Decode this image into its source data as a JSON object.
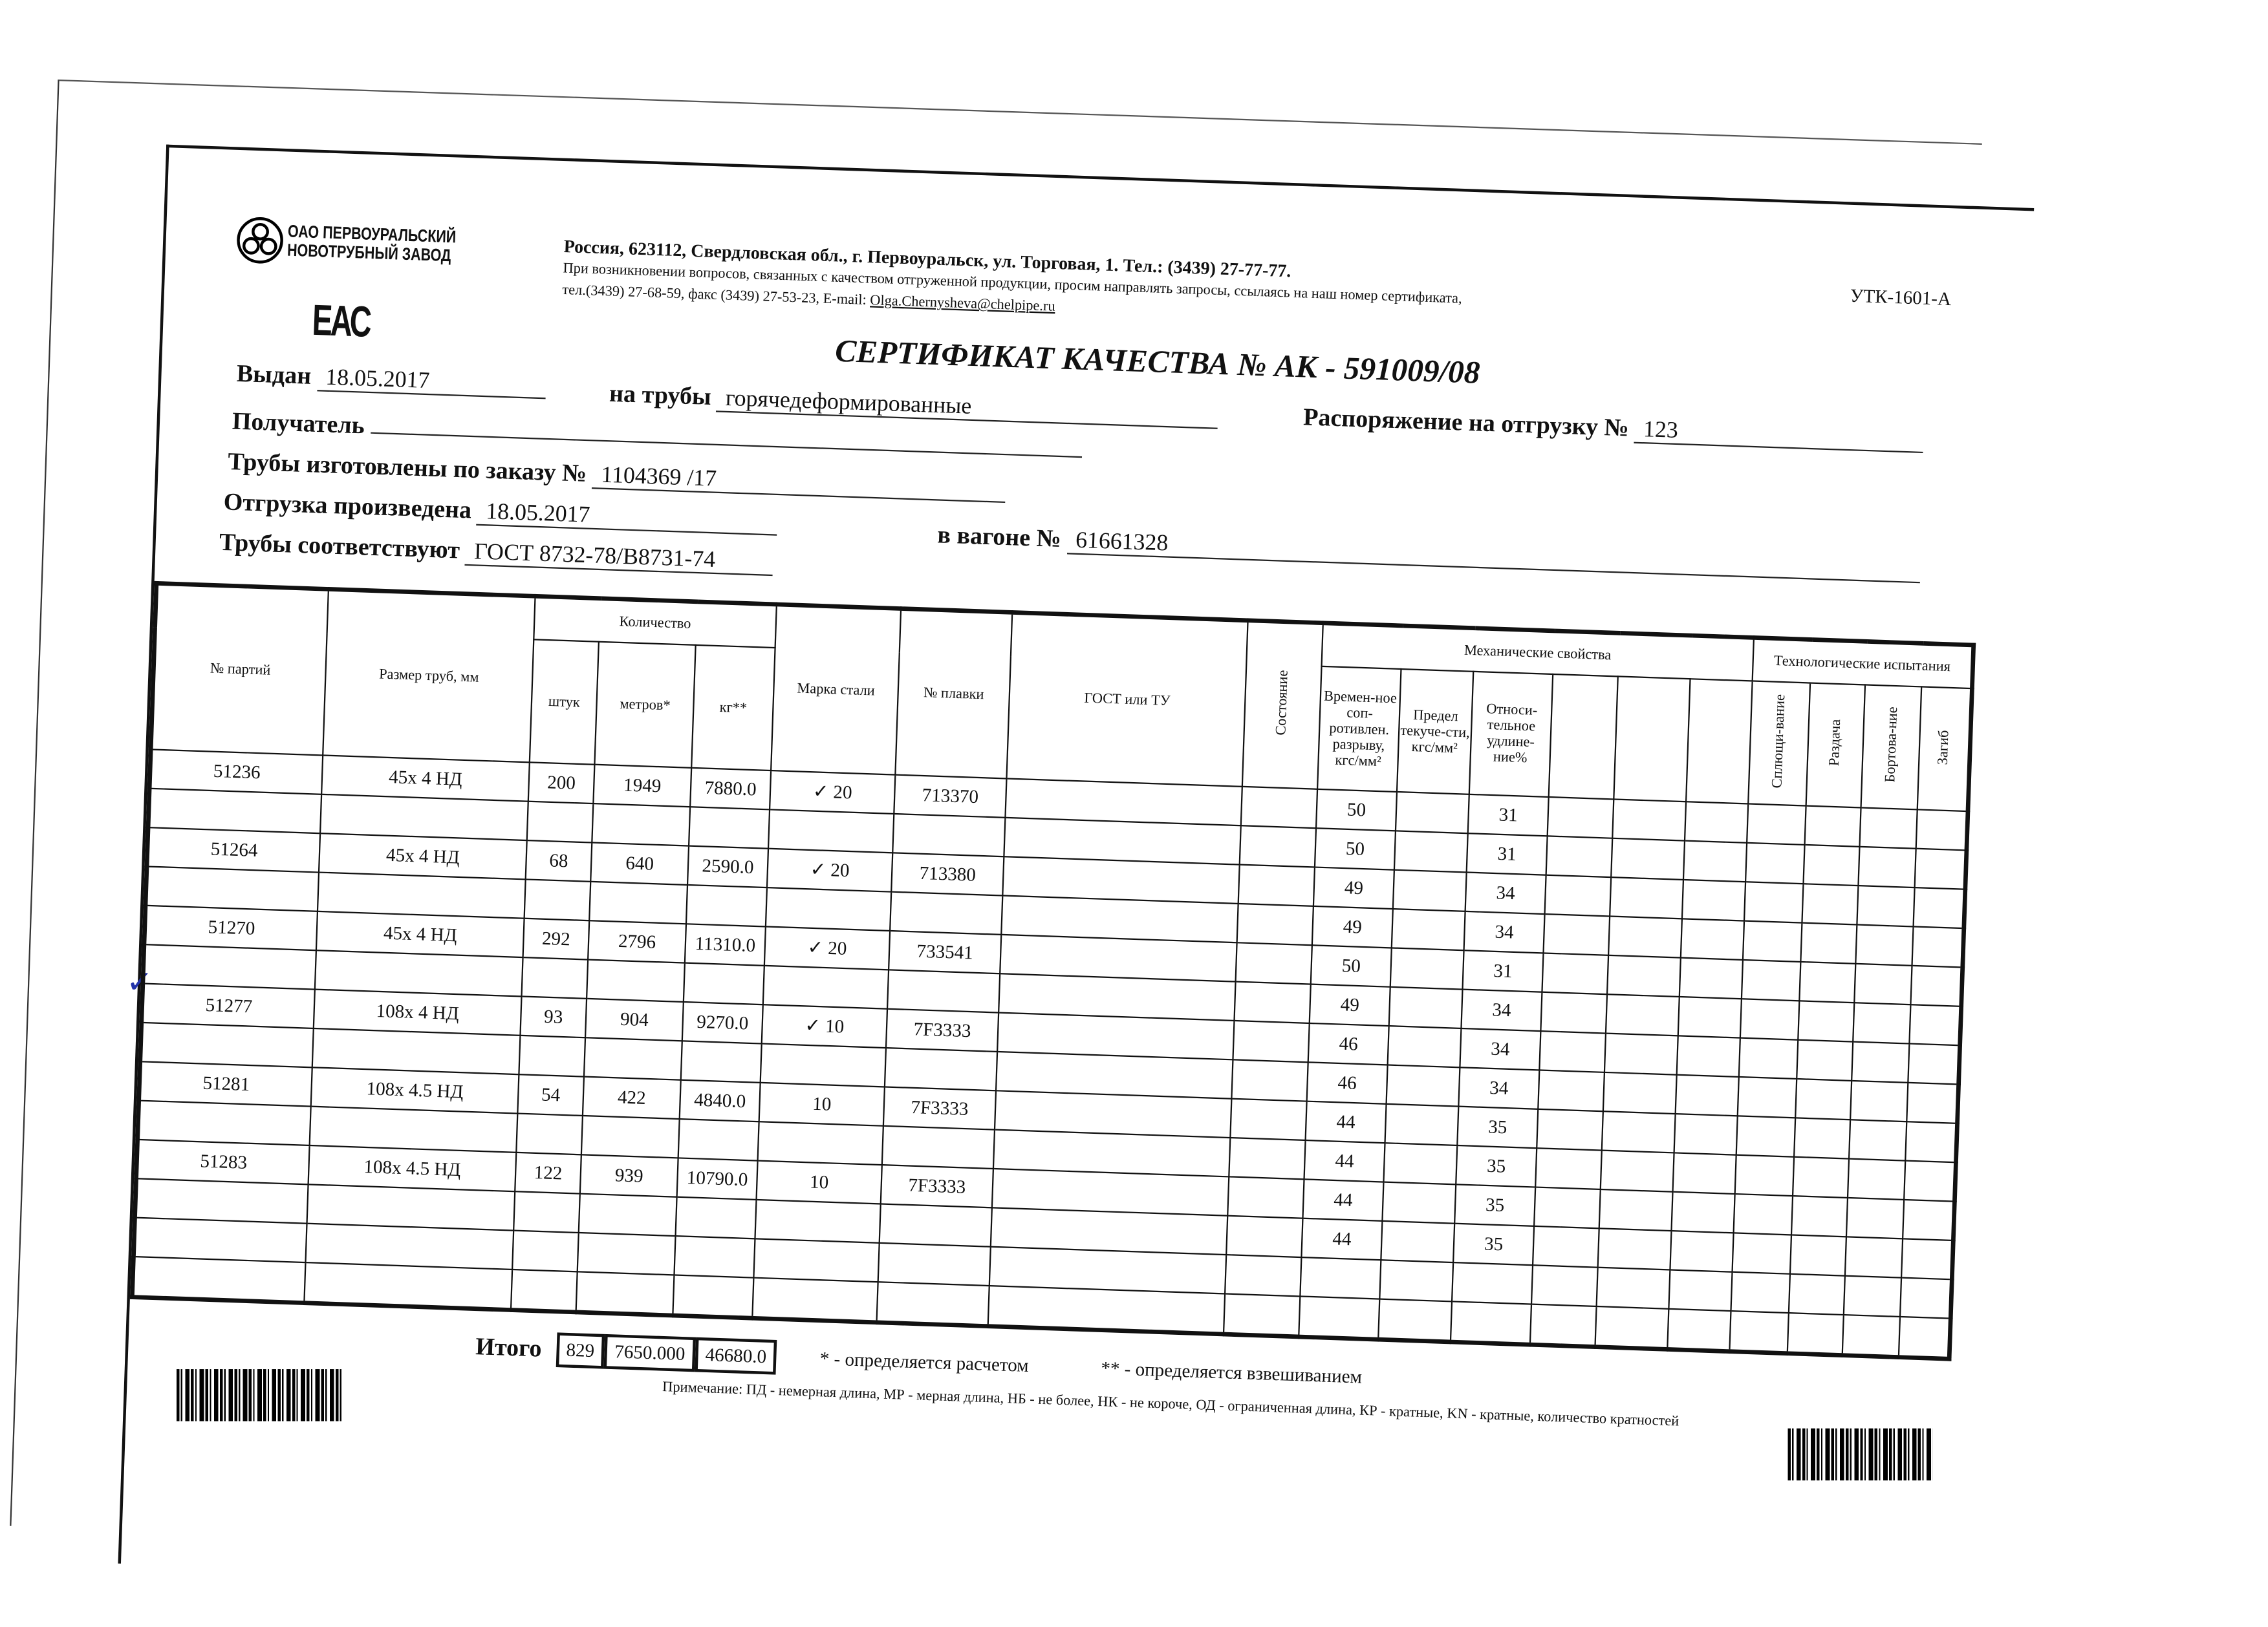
{
  "header": {
    "company_line1": "ОАО ПЕРВОУРАЛЬСКИЙ",
    "company_line2": "НОВОТРУБНЫЙ ЗАВОД",
    "eac_mark": "ЕАС",
    "address": "Россия, 623112, Свердловская обл., г. Первоуральск, ул. Торговая, 1. Тел.: (3439) 27-77-77.",
    "contact_note": "При возникновении вопросов, связанных с качеством отгруженной продукции, просим направлять запросы, ссылаясь на наш номер сертификата,",
    "phones": "тел.(3439) 27-68-59, факс (3439) 27-53-23, E-mail:",
    "email": "Olga.Chernysheva@chelpipe.ru",
    "form_code": "УТК-1601-А"
  },
  "title": "СЕРТИФИКАТ КАЧЕСТВА   №  АК -  591009/08",
  "fields": {
    "issued_label": "Выдан",
    "issued_value": "18.05.2017",
    "pipes_label": "на трубы",
    "pipes_value": "горячедеформированные",
    "order_label": "Распоряжение на отгрузку №",
    "order_value": "123",
    "recipient_label": "Получатель",
    "recipient_value": "",
    "made_label": "Трубы изготовлены по заказу №",
    "made_value": "1104369  /17",
    "shipped_label": "Отгрузка произведена",
    "shipped_value": "18.05.2017",
    "wagon_label": "в вагоне №",
    "wagon_value": "61661328",
    "conform_label": "Трубы соответствуют",
    "conform_value": "ГОСТ 8732-78/В8731-74"
  },
  "table": {
    "headers": {
      "lot": "№ партий",
      "size": "Размер труб, мм",
      "quantity": "Количество",
      "pcs": "штук",
      "meters": "метров*",
      "kg": "кг**",
      "steel": "Марка стали",
      "heat": "№ плавки",
      "gost": "ГОСТ или ТУ",
      "state": "Состояние",
      "mech": "Механические свойства",
      "tensile": "Времен-ное соп-ротивлен. разрыву, кгс/мм²",
      "yield": "Предел текуче-сти, кгс/мм²",
      "elong": "Относи-тельное удлине-ние%",
      "tech": "Технологические испытания",
      "flatten": "Сплющи-вание",
      "flare": "Раздача",
      "flange": "Бортова-ние",
      "bend": "Загиб"
    },
    "lots": [
      {
        "lot": "51236",
        "size": "45х 4 НД",
        "pcs": "200",
        "meters": "1949",
        "kg": "7880.0",
        "steel": "✓ 20",
        "heat": "713370"
      },
      {
        "lot": "51264",
        "size": "45х 4 НД",
        "pcs": "68",
        "meters": "640",
        "kg": "2590.0",
        "steel": "✓ 20",
        "heat": "713380"
      },
      {
        "lot": "51270",
        "size": "45х 4 НД",
        "pcs": "292",
        "meters": "2796",
        "kg": "11310.0",
        "steel": "✓ 20",
        "heat": "733541"
      },
      {
        "lot": "51277",
        "size": "108х 4 НД",
        "pcs": "93",
        "meters": "904",
        "kg": "9270.0",
        "steel": "✓ 10",
        "heat": "7F3333"
      },
      {
        "lot": "51281",
        "size": "108х 4.5 НД",
        "pcs": "54",
        "meters": "422",
        "kg": "4840.0",
        "steel": "10",
        "heat": "7F3333"
      },
      {
        "lot": "51283",
        "size": "108х 4.5 НД",
        "pcs": "122",
        "meters": "939",
        "kg": "10790.0",
        "steel": "10",
        "heat": "7F3333"
      }
    ],
    "mech_rows": [
      {
        "tensile": "50",
        "elong": "31"
      },
      {
        "tensile": "50",
        "elong": "31"
      },
      {
        "tensile": "49",
        "elong": "34"
      },
      {
        "tensile": "49",
        "elong": "34"
      },
      {
        "tensile": "50",
        "elong": "31"
      },
      {
        "tensile": "49",
        "elong": "34"
      },
      {
        "tensile": "46",
        "elong": "34"
      },
      {
        "tensile": "46",
        "elong": "34"
      },
      {
        "tensile": "44",
        "elong": "35"
      },
      {
        "tensile": "44",
        "elong": "35"
      },
      {
        "tensile": "44",
        "elong": "35"
      },
      {
        "tensile": "44",
        "elong": "35"
      }
    ]
  },
  "totals": {
    "label": "Итого",
    "pcs": "829",
    "meters": "7650.000",
    "kg": "46680.0"
  },
  "footnotes": {
    "calc": "* - определяется расчетом",
    "weigh": "** - определяется взвешиванием",
    "remark": "Примечание: ПД - немерная длина, МР - мерная длина, НБ - не более, НК - не короче, ОД - ограниченная длина, КР - кратные, KN - кратные, количество кратностей"
  },
  "handwritten_check": "✓"
}
